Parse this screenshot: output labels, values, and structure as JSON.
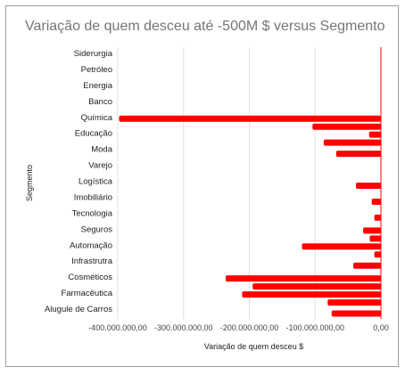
{
  "chart_data": {
    "type": "bar",
    "orientation": "horizontal",
    "title": "Variação de quem desceu até -500M $ versus Segmento",
    "xlabel": "Variação de quem desceu $",
    "ylabel": "Segmento",
    "xlim": [
      -400000000,
      0
    ],
    "x_ticks": [
      "-400.000.000,00",
      "-300.000.000,00",
      "-200.000.000,00",
      "-100.000.000,00",
      "0,00"
    ],
    "x_tick_values": [
      -400000000,
      -300000000,
      -200000000,
      -100000000,
      0
    ],
    "grid": true,
    "color": "#ff0000",
    "categories": [
      "Siderurgia",
      "Petróleo",
      "Energia",
      "Banco",
      "Química",
      "Educação",
      "Moda",
      "Varejo",
      "Logística",
      "Imobiliário",
      "Tecnologia",
      "Seguros",
      "Automação",
      "Infrastrutra",
      "Cosméticos",
      "Farmacêutica",
      "Alugule de Carros"
    ],
    "bars": [
      {
        "category": "Química",
        "value": -398000000
      },
      {
        "category": "Química",
        "value": -104000000
      },
      {
        "category": "Educação",
        "value": -18000000
      },
      {
        "category": "Educação",
        "value": -87000000
      },
      {
        "category": "Moda",
        "value": -68000000
      },
      {
        "category": "Logística",
        "value": -38000000
      },
      {
        "category": "Imobiliário",
        "value": -14000000
      },
      {
        "category": "Tecnologia",
        "value": -10000000
      },
      {
        "category": "Seguros",
        "value": -27000000
      },
      {
        "category": "Seguros",
        "value": -17000000
      },
      {
        "category": "Automação",
        "value": -120000000
      },
      {
        "category": "Automação",
        "value": -10000000
      },
      {
        "category": "Infrastrutra",
        "value": -42000000
      },
      {
        "category": "Cosméticos",
        "value": -236000000
      },
      {
        "category": "Cosméticos",
        "value": -195000000
      },
      {
        "category": "Farmacêutica",
        "value": -211000000
      },
      {
        "category": "Farmacêutica",
        "value": -81000000
      },
      {
        "category": "Alugule de Carros",
        "value": -75000000
      }
    ]
  }
}
